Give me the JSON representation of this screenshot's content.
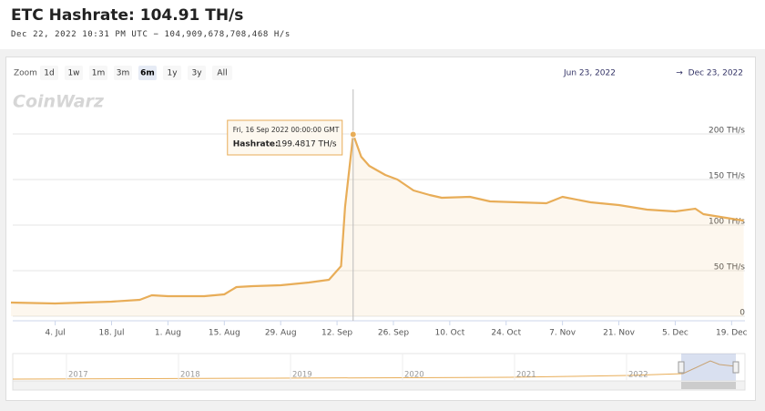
{
  "header": {
    "title": "ETC Hashrate: 104.91 TH/s",
    "subtitle": "Dec 22, 2022 10:31 PM UTC − 104,909,678,708,468 H/s"
  },
  "toolbar": {
    "zoom_label": "Zoom",
    "buttons": [
      "1d",
      "1w",
      "1m",
      "3m",
      "6m",
      "1y",
      "3y",
      "All"
    ],
    "selected": "6m",
    "range_from": "Jun 23, 2022",
    "range_separator": "→",
    "range_to": "Dec 23, 2022"
  },
  "watermark": "CoinWarz",
  "chart_data": {
    "type": "area",
    "x": [
      "2022-06-23",
      "2022-07-04",
      "2022-07-18",
      "2022-07-25",
      "2022-07-28",
      "2022-08-01",
      "2022-08-10",
      "2022-08-15",
      "2022-08-18",
      "2022-08-22",
      "2022-08-29",
      "2022-09-05",
      "2022-09-10",
      "2022-09-13",
      "2022-09-14",
      "2022-09-16",
      "2022-09-18",
      "2022-09-20",
      "2022-09-24",
      "2022-09-27",
      "2022-10-01",
      "2022-10-05",
      "2022-10-08",
      "2022-10-15",
      "2022-10-20",
      "2022-10-27",
      "2022-11-03",
      "2022-11-07",
      "2022-11-14",
      "2022-11-21",
      "2022-11-28",
      "2022-12-05",
      "2022-12-10",
      "2022-12-12",
      "2022-12-19",
      "2022-12-22"
    ],
    "values": [
      15,
      14,
      16,
      18,
      23,
      22,
      22,
      24,
      32,
      33,
      34,
      37,
      40,
      55,
      120,
      199.4817,
      175,
      165,
      155,
      150,
      138,
      133,
      130,
      131,
      126,
      125,
      124,
      131,
      125,
      122,
      117,
      115,
      118,
      112,
      107,
      104.91
    ],
    "color": "#e8ad58",
    "xlim": [
      "2022-06-23",
      "2022-12-23"
    ],
    "xticks": [
      {
        "value": "2022-07-04",
        "label": "4. Jul"
      },
      {
        "value": "2022-07-18",
        "label": "18. Jul"
      },
      {
        "value": "2022-08-01",
        "label": "1. Aug"
      },
      {
        "value": "2022-08-15",
        "label": "15. Aug"
      },
      {
        "value": "2022-08-29",
        "label": "29. Aug"
      },
      {
        "value": "2022-09-12",
        "label": "12. Sep"
      },
      {
        "value": "2022-09-26",
        "label": "26. Sep"
      },
      {
        "value": "2022-10-10",
        "label": "10. Oct"
      },
      {
        "value": "2022-10-24",
        "label": "24. Oct"
      },
      {
        "value": "2022-11-07",
        "label": "7. Nov"
      },
      {
        "value": "2022-11-21",
        "label": "21. Nov"
      },
      {
        "value": "2022-12-05",
        "label": "5. Dec"
      },
      {
        "value": "2022-12-19",
        "label": "19. Dec"
      }
    ],
    "ylim": [
      0,
      200
    ],
    "yticks": [
      0,
      {
        "value": 50,
        "label": "50 TH/s"
      },
      {
        "value": 100,
        "label": "100 TH/s"
      },
      {
        "value": 150,
        "label": "150 TH/s"
      },
      {
        "value": 200,
        "label": "200 TH/s"
      }
    ],
    "grid": true,
    "tooltip": {
      "date": "Fri, 16 Sep 2022 00:00:00 GMT",
      "label": "Hashrate:",
      "value": "199.4817 TH/s"
    },
    "navigator_labels": [
      "2017",
      "2018",
      "2019",
      "2020",
      "2021",
      "2022"
    ]
  }
}
